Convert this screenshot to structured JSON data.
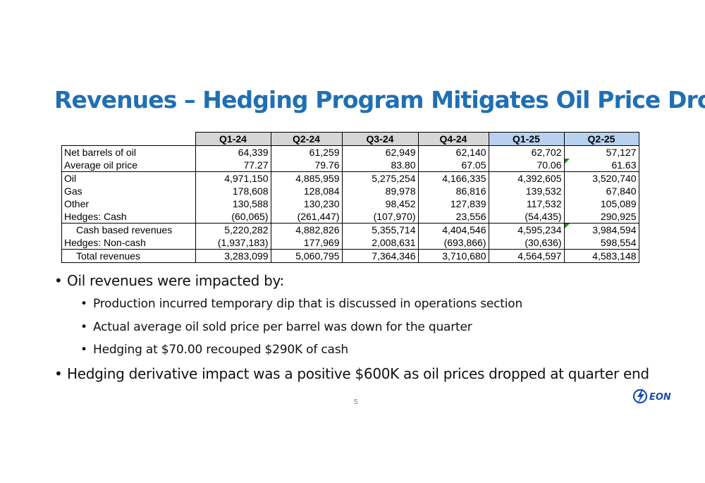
{
  "title": "Revenues – Hedging Program Mitigates Oil Price Drop",
  "table": {
    "columns": [
      "Q1-24",
      "Q2-24",
      "Q3-24",
      "Q4-24",
      "Q1-25",
      "Q2-25"
    ],
    "rows": [
      {
        "label": "Net barrels of oil",
        "values": [
          "64,339",
          "61,259",
          "62,949",
          "62,140",
          "62,702",
          "57,127"
        ]
      },
      {
        "label": "Average oil price",
        "values": [
          "77.27",
          "79.76",
          "83.80",
          "67.05",
          "70.06",
          "61.63"
        ]
      },
      {
        "label": "Oil",
        "values": [
          "4,971,150",
          "4,885,959",
          "5,275,254",
          "4,166,335",
          "4,392,605",
          "3,520,740"
        ]
      },
      {
        "label": "Gas",
        "values": [
          "178,608",
          "128,084",
          "89,978",
          "86,816",
          "139,532",
          "67,840"
        ]
      },
      {
        "label": "Other",
        "values": [
          "130,588",
          "130,230",
          "98,452",
          "127,839",
          "117,532",
          "105,089"
        ]
      },
      {
        "label": "Hedges: Cash",
        "values": [
          "(60,065)",
          "(261,447)",
          "(107,970)",
          "23,556",
          "(54,435)",
          "290,925"
        ]
      },
      {
        "label": "Cash based revenues",
        "values": [
          "5,220,282",
          "4,882,826",
          "5,355,714",
          "4,404,546",
          "4,595,234",
          "3,984,594"
        ]
      },
      {
        "label": "Hedges:  Non-cash",
        "values": [
          "(1,937,183)",
          "177,969",
          "2,008,631",
          "(693,866)",
          "(30,636)",
          "598,554"
        ]
      },
      {
        "label": "Total revenues",
        "values": [
          "3,283,099",
          "5,060,795",
          "7,364,346",
          "3,710,680",
          "4,564,597",
          "4,583,148"
        ]
      }
    ]
  },
  "bullets": [
    {
      "text": "Oil revenues were impacted by:",
      "level": 1
    },
    {
      "text": "Production incurred temporary dip that is discussed in operations section",
      "level": 2
    },
    {
      "text": "Actual average oil sold price per barrel was down for the quarter",
      "level": 2
    },
    {
      "text": "Hedging at $70.00 recouped $290K of cash",
      "level": 2
    },
    {
      "text": "Hedging derivative impact was a positive $600K as oil prices dropped at quarter end",
      "level": 1
    }
  ],
  "bullet_char": "•",
  "page_number": "5",
  "logo": {
    "text": "EON",
    "icon": "lightning-bolt-icon",
    "color": "#1f4fa8"
  }
}
